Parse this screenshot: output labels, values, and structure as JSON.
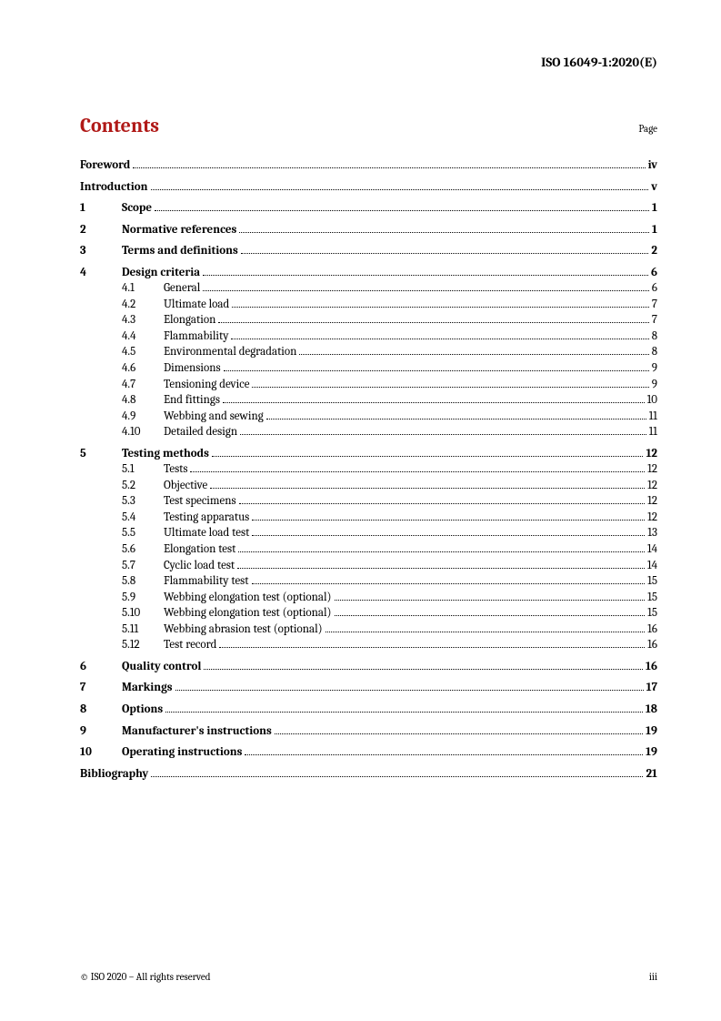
{
  "doc_header": "ISO 16049-1:2020(E)",
  "contents_title": "Contents",
  "page_label": "Page",
  "footer_left": "© ISO 2020 – All rights reserved",
  "footer_right": "iii",
  "toc": {
    "foreword": {
      "title": "Foreword",
      "page": "iv"
    },
    "introduction": {
      "title": "Introduction",
      "page": "v"
    },
    "s1": {
      "num": "1",
      "title": "Scope",
      "page": "1"
    },
    "s2": {
      "num": "2",
      "title": "Normative references",
      "page": "1"
    },
    "s3": {
      "num": "3",
      "title": "Terms and definitions",
      "page": "2"
    },
    "s4": {
      "num": "4",
      "title": "Design criteria",
      "page": "6",
      "subs": [
        {
          "num": "4.1",
          "title": "General",
          "page": "6"
        },
        {
          "num": "4.2",
          "title": "Ultimate load",
          "page": "7"
        },
        {
          "num": "4.3",
          "title": "Elongation",
          "page": "7"
        },
        {
          "num": "4.4",
          "title": "Flammability",
          "page": "8"
        },
        {
          "num": "4.5",
          "title": "Environmental degradation",
          "page": "8"
        },
        {
          "num": "4.6",
          "title": "Dimensions",
          "page": "9"
        },
        {
          "num": "4.7",
          "title": "Tensioning device",
          "page": "9"
        },
        {
          "num": "4.8",
          "title": "End fittings",
          "page": "10"
        },
        {
          "num": "4.9",
          "title": "Webbing and sewing",
          "page": "11"
        },
        {
          "num": "4.10",
          "title": "Detailed design",
          "page": "11"
        }
      ]
    },
    "s5": {
      "num": "5",
      "title": "Testing methods",
      "page": "12",
      "subs": [
        {
          "num": "5.1",
          "title": "Tests",
          "page": "12"
        },
        {
          "num": "5.2",
          "title": "Objective",
          "page": "12"
        },
        {
          "num": "5.3",
          "title": "Test specimens",
          "page": "12"
        },
        {
          "num": "5.4",
          "title": "Testing apparatus",
          "page": "12"
        },
        {
          "num": "5.5",
          "title": "Ultimate load test",
          "page": "13"
        },
        {
          "num": "5.6",
          "title": "Elongation test",
          "page": "14"
        },
        {
          "num": "5.7",
          "title": "Cyclic load test",
          "page": "14"
        },
        {
          "num": "5.8",
          "title": "Flammability test",
          "page": "15"
        },
        {
          "num": "5.9",
          "title": "Webbing elongation test (optional)",
          "page": "15"
        },
        {
          "num": "5.10",
          "title": "Webbing elongation test (optional)",
          "page": "15"
        },
        {
          "num": "5.11",
          "title": "Webbing abrasion test (optional)",
          "page": "16"
        },
        {
          "num": "5.12",
          "title": "Test record",
          "page": "16"
        }
      ]
    },
    "s6": {
      "num": "6",
      "title": "Quality control",
      "page": "16"
    },
    "s7": {
      "num": "7",
      "title": "Markings",
      "page": "17"
    },
    "s8": {
      "num": "8",
      "title": "Options",
      "page": "18"
    },
    "s9": {
      "num": "9",
      "title": "Manufacturer's instructions",
      "page": "19"
    },
    "s10": {
      "num": "10",
      "title": "Operating instructions",
      "page": "19"
    },
    "biblio": {
      "title": "Bibliography",
      "page": "21"
    }
  }
}
